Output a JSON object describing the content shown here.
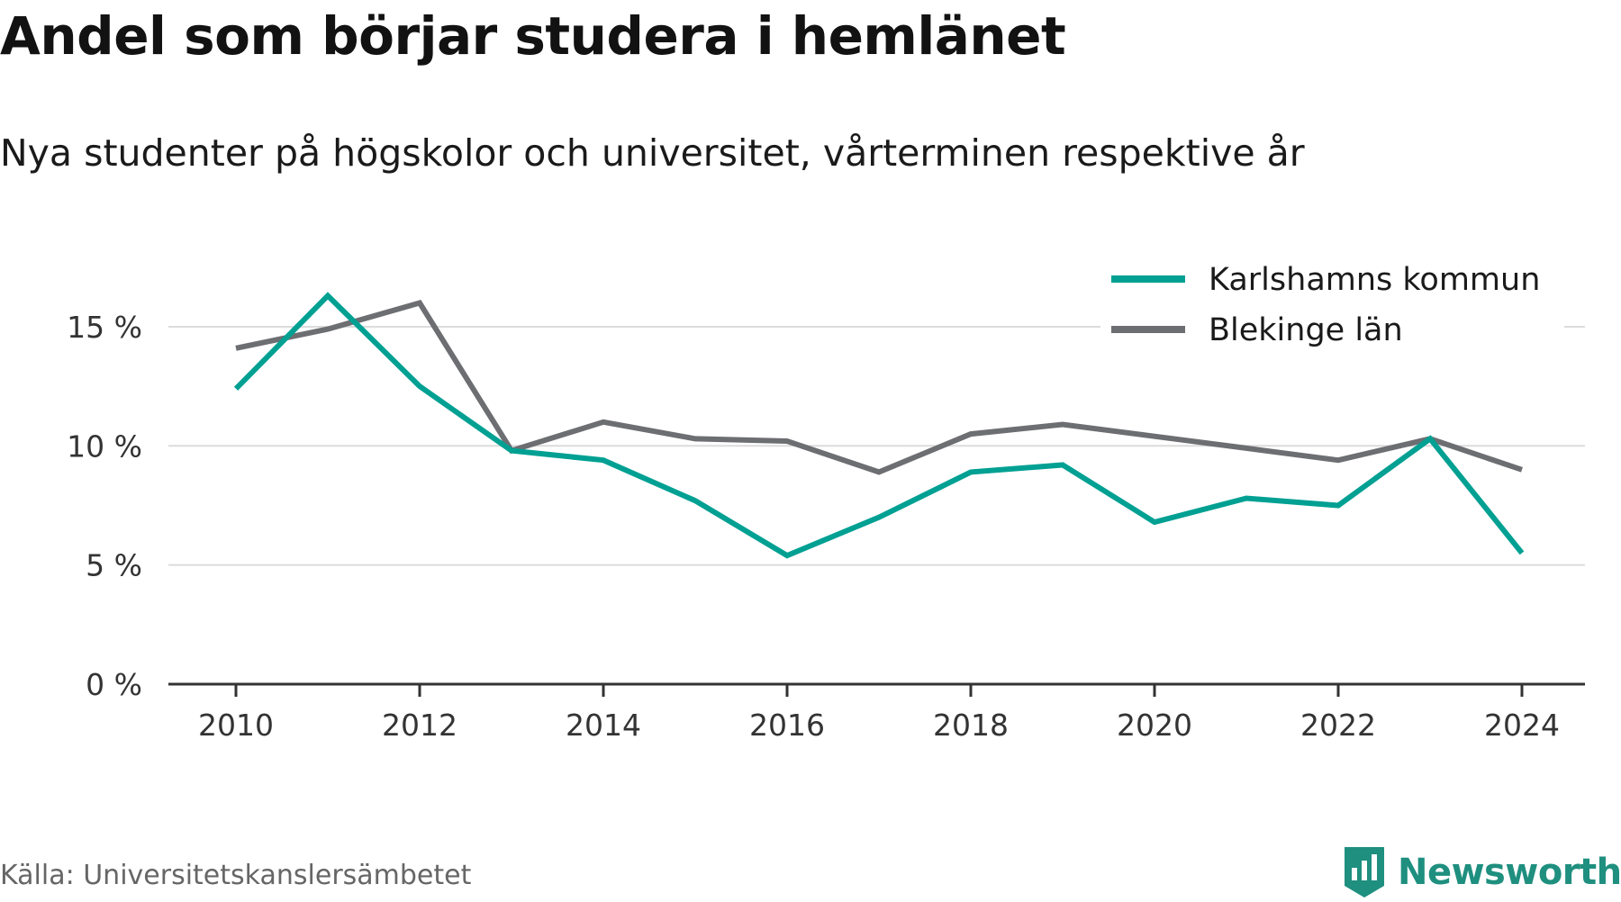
{
  "chart_data": {
    "type": "line",
    "title": "Andel som börjar studera i hemlänet",
    "subtitle": "Nya studenter på högskolor och universitet, vårterminen respektive år",
    "xlabel": "",
    "ylabel": "",
    "x": [
      2010,
      2011,
      2012,
      2013,
      2014,
      2015,
      2016,
      2017,
      2018,
      2019,
      2020,
      2021,
      2022,
      2023,
      2024
    ],
    "x_ticks": [
      "2010",
      "2012",
      "2014",
      "2016",
      "2018",
      "2020",
      "2022",
      "2024"
    ],
    "y_ticks": [
      "0 %",
      "5 %",
      "10 %",
      "15 %"
    ],
    "ylim": [
      0,
      17
    ],
    "grid": true,
    "legend_position": "top-right",
    "series": [
      {
        "name": "Karlshamns kommun",
        "color": "#00a093",
        "values": [
          12.4,
          16.3,
          12.5,
          9.8,
          9.4,
          7.7,
          5.4,
          7.0,
          8.9,
          9.2,
          6.8,
          7.8,
          7.5,
          10.3,
          5.5
        ]
      },
      {
        "name": "Blekinge län",
        "color": "#6d6e72",
        "values": [
          14.1,
          14.9,
          16.0,
          9.8,
          11.0,
          10.3,
          10.2,
          8.9,
          10.5,
          10.9,
          10.4,
          9.9,
          9.4,
          10.3,
          9.0
        ]
      }
    ]
  },
  "source": "Källa: Universitetskanslersämbetet",
  "brand": {
    "name": "Newsworthy",
    "icon": "newsworthy-logo-icon",
    "color": "#1f8f7f"
  }
}
